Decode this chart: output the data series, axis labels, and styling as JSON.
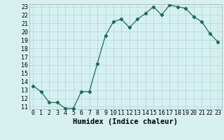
{
  "x": [
    0,
    1,
    2,
    3,
    4,
    5,
    6,
    7,
    8,
    9,
    10,
    11,
    12,
    13,
    14,
    15,
    16,
    17,
    18,
    19,
    20,
    21,
    22,
    23
  ],
  "y": [
    13.5,
    12.8,
    11.5,
    11.5,
    10.8,
    10.8,
    12.8,
    12.8,
    16.2,
    19.5,
    21.2,
    21.5,
    20.5,
    21.5,
    22.2,
    23.0,
    22.0,
    23.2,
    23.0,
    22.8,
    21.8,
    21.2,
    19.8,
    18.8
  ],
  "line_color": "#1a6b5a",
  "marker_color": "#1a6b5a",
  "bg_color": "#d6f0f0",
  "grid_color": "#b8dede",
  "xlabel": "Humidex (Indice chaleur)",
  "ylim": [
    11,
    23
  ],
  "xlim": [
    -0.5,
    23.5
  ],
  "yticks": [
    11,
    12,
    13,
    14,
    15,
    16,
    17,
    18,
    19,
    20,
    21,
    22,
    23
  ],
  "xticks": [
    0,
    1,
    2,
    3,
    4,
    5,
    6,
    7,
    8,
    9,
    10,
    11,
    12,
    13,
    14,
    15,
    16,
    17,
    18,
    19,
    20,
    21,
    22,
    23
  ],
  "tick_fontsize": 6,
  "label_fontsize": 7.5
}
